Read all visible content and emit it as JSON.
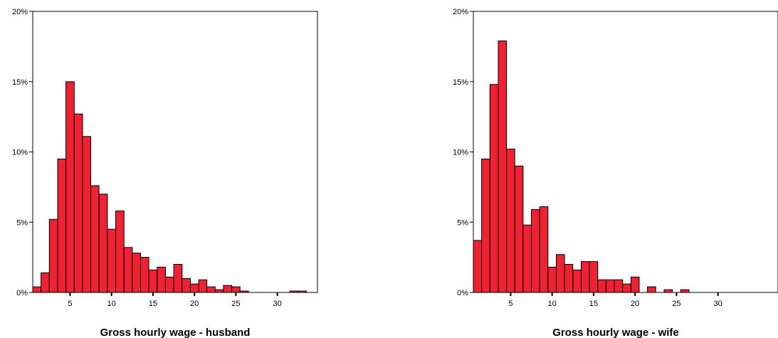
{
  "chart_data": [
    {
      "type": "bar",
      "subtype": "histogram",
      "title": "",
      "xlabel": "Gross hourly wage - husband",
      "ylabel": "",
      "xlim": [
        0.5,
        34.5
      ],
      "ylim": [
        0,
        20
      ],
      "y_unit": "%",
      "x_ticks": [
        "5",
        "10",
        "15",
        "20",
        "25",
        "30"
      ],
      "y_ticks": [
        "0%",
        "5%",
        "10%",
        "15%",
        "20%"
      ],
      "bin_width": 1,
      "bin_centers": [
        1,
        2,
        3,
        4,
        5,
        6,
        7,
        8,
        9,
        10,
        11,
        12,
        13,
        14,
        15,
        16,
        17,
        18,
        19,
        20,
        21,
        22,
        23,
        24,
        25,
        26,
        27,
        28,
        29,
        30,
        31,
        32,
        33
      ],
      "values": [
        0.4,
        1.4,
        5.2,
        9.5,
        15.0,
        12.7,
        11.1,
        7.6,
        7.0,
        4.5,
        5.8,
        3.2,
        2.8,
        2.5,
        1.6,
        1.8,
        1.1,
        2.0,
        1.0,
        0.6,
        0.9,
        0.4,
        0.2,
        0.5,
        0.4,
        0.1,
        0,
        0,
        0,
        0,
        0,
        0.1,
        0.1
      ],
      "bar_color": "#ee2233",
      "grid": false
    },
    {
      "type": "bar",
      "subtype": "histogram",
      "title": "",
      "xlabel": "Gross hourly wage - wife",
      "ylabel": "",
      "xlim": [
        0.5,
        34.5
      ],
      "ylim": [
        0,
        20
      ],
      "y_unit": "%",
      "x_ticks": [
        "5",
        "10",
        "15",
        "20",
        "25",
        "30"
      ],
      "y_ticks": [
        "0%",
        "5%",
        "10%",
        "15%",
        "20%"
      ],
      "bin_width": 1,
      "bin_centers": [
        1,
        2,
        3,
        4,
        5,
        6,
        7,
        8,
        9,
        10,
        11,
        12,
        13,
        14,
        15,
        16,
        17,
        18,
        19,
        20,
        21,
        22,
        23,
        24,
        25,
        26,
        27
      ],
      "values": [
        3.7,
        9.5,
        14.8,
        17.9,
        10.2,
        9.0,
        4.8,
        5.9,
        6.1,
        1.8,
        2.7,
        2.0,
        1.6,
        2.2,
        2.2,
        0.9,
        0.9,
        0.9,
        0.6,
        1.1,
        0,
        0.4,
        0,
        0.2,
        0,
        0.2,
        0
      ],
      "bar_color": "#ee2233",
      "grid": false
    }
  ]
}
